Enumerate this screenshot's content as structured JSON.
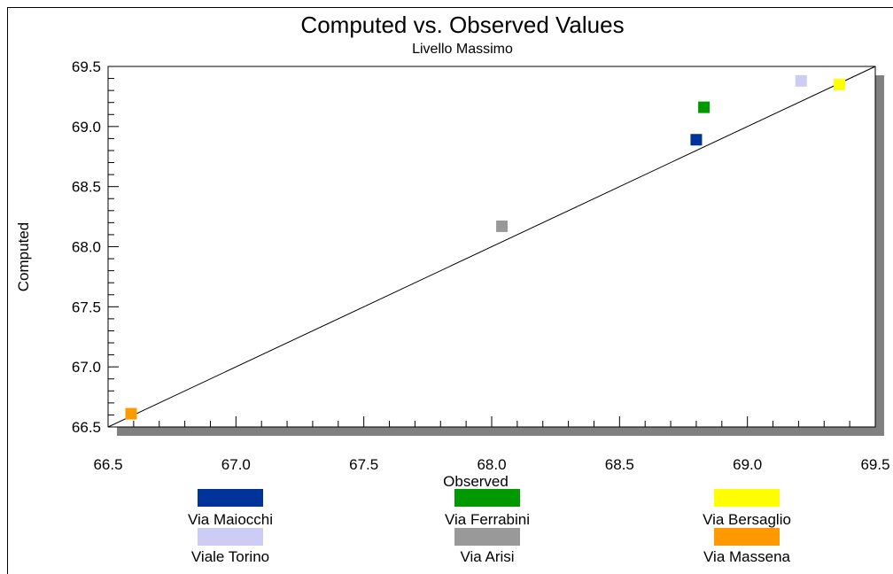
{
  "chart_data": {
    "type": "scatter",
    "title": "Computed vs. Observed Values",
    "subtitle": "Livello Massimo",
    "xlabel": "Observed",
    "ylabel": "Computed",
    "xlim": [
      66.5,
      69.5
    ],
    "ylim": [
      66.5,
      69.5
    ],
    "xticks": [
      "66.5",
      "67.0",
      "67.5",
      "68.0",
      "68.5",
      "69.0",
      "69.5"
    ],
    "yticks": [
      "66.5",
      "67.0",
      "67.5",
      "68.0",
      "68.5",
      "69.0",
      "69.5"
    ],
    "grid": false,
    "reference_line": "y = x",
    "legend_position": "bottom",
    "series": [
      {
        "name": "Via Maiocchi",
        "color": "#003399",
        "x": 68.8,
        "y": 68.89
      },
      {
        "name": "Via Ferrabini",
        "color": "#009900",
        "x": 68.83,
        "y": 69.16
      },
      {
        "name": "Via Bersaglio",
        "color": "#ffff00",
        "x": 69.36,
        "y": 69.35
      },
      {
        "name": "Viale Torino",
        "color": "#ccccf5",
        "x": 69.21,
        "y": 69.38
      },
      {
        "name": "Via Arisi",
        "color": "#999999",
        "x": 68.04,
        "y": 68.17
      },
      {
        "name": "Via Massena",
        "color": "#ff9900",
        "x": 66.59,
        "y": 66.61
      }
    ]
  }
}
